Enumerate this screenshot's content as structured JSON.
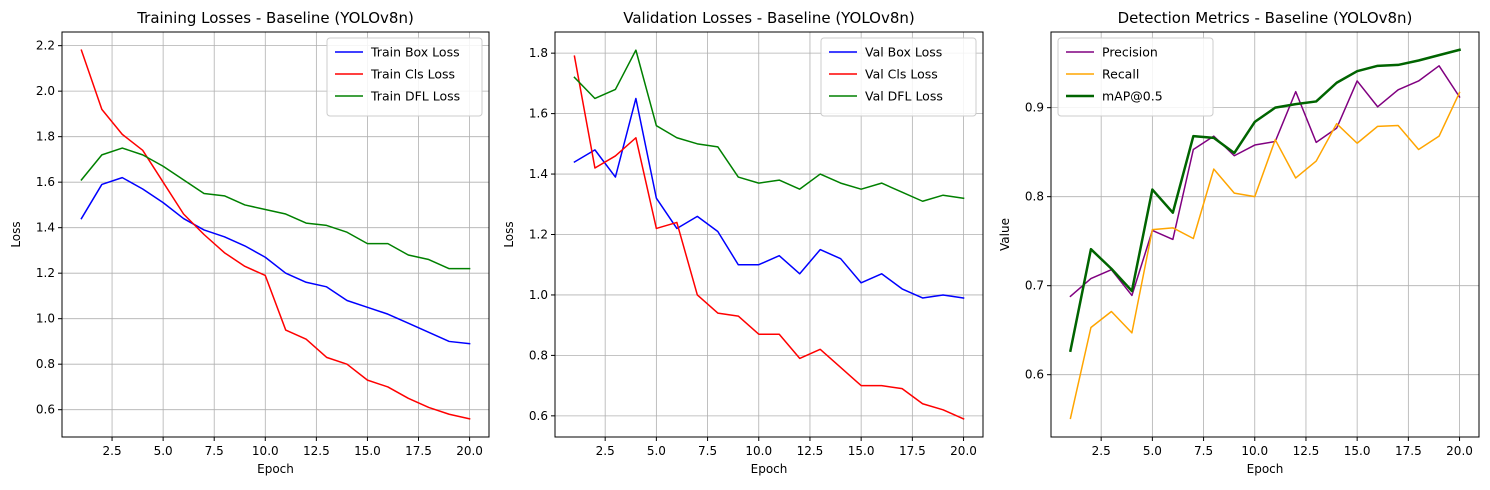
{
  "chart_data": [
    {
      "type": "line",
      "title": "Training Losses - Baseline (YOLOv8n)",
      "xlabel": "Epoch",
      "ylabel": "Loss",
      "xlim": [
        0.05,
        20.95
      ],
      "ylim": [
        0.48,
        2.26
      ],
      "xticks": [
        2.5,
        5.0,
        7.5,
        10.0,
        12.5,
        15.0,
        17.5,
        20.0
      ],
      "xticklabels": [
        "2.5",
        "5.0",
        "7.5",
        "10.0",
        "12.5",
        "15.0",
        "17.5",
        "20.0"
      ],
      "yticks": [
        0.6,
        0.8,
        1.0,
        1.2,
        1.4,
        1.6,
        1.8,
        2.0,
        2.2
      ],
      "yticklabels": [
        "0.6",
        "0.8",
        "1.0",
        "1.2",
        "1.4",
        "1.6",
        "1.8",
        "2.0",
        "2.2"
      ],
      "grid": true,
      "legend": "upper right",
      "x": [
        1,
        2,
        3,
        4,
        5,
        6,
        7,
        8,
        9,
        10,
        11,
        12,
        13,
        14,
        15,
        16,
        17,
        18,
        19,
        20
      ],
      "series": [
        {
          "name": "Train Box Loss",
          "color": "#0000ff",
          "linewidth": 1.5,
          "values": [
            1.44,
            1.59,
            1.62,
            1.57,
            1.51,
            1.44,
            1.39,
            1.36,
            1.32,
            1.27,
            1.2,
            1.16,
            1.14,
            1.08,
            1.05,
            1.02,
            0.98,
            0.94,
            0.9,
            0.89
          ]
        },
        {
          "name": "Train Cls Loss",
          "color": "#ff0000",
          "linewidth": 1.5,
          "values": [
            2.18,
            1.92,
            1.81,
            1.74,
            1.6,
            1.46,
            1.37,
            1.29,
            1.23,
            1.19,
            0.95,
            0.91,
            0.83,
            0.8,
            0.73,
            0.7,
            0.65,
            0.61,
            0.58,
            0.56
          ]
        },
        {
          "name": "Train DFL Loss",
          "color": "#008000",
          "linewidth": 1.5,
          "values": [
            1.61,
            1.72,
            1.75,
            1.72,
            1.67,
            1.61,
            1.55,
            1.54,
            1.5,
            1.48,
            1.46,
            1.42,
            1.41,
            1.38,
            1.33,
            1.33,
            1.28,
            1.26,
            1.22,
            1.22
          ]
        }
      ]
    },
    {
      "type": "line",
      "title": "Validation Losses - Baseline (YOLOv8n)",
      "xlabel": "Epoch",
      "ylabel": "Loss",
      "xlim": [
        0.05,
        20.95
      ],
      "ylim": [
        0.53,
        1.87
      ],
      "xticks": [
        2.5,
        5.0,
        7.5,
        10.0,
        12.5,
        15.0,
        17.5,
        20.0
      ],
      "xticklabels": [
        "2.5",
        "5.0",
        "7.5",
        "10.0",
        "12.5",
        "15.0",
        "17.5",
        "20.0"
      ],
      "yticks": [
        0.6,
        0.8,
        1.0,
        1.2,
        1.4,
        1.6,
        1.8
      ],
      "yticklabels": [
        "0.6",
        "0.8",
        "1.0",
        "1.2",
        "1.4",
        "1.6",
        "1.8"
      ],
      "grid": true,
      "legend": "upper right",
      "x": [
        1,
        2,
        3,
        4,
        5,
        6,
        7,
        8,
        9,
        10,
        11,
        12,
        13,
        14,
        15,
        16,
        17,
        18,
        19,
        20
      ],
      "series": [
        {
          "name": "Val Box Loss",
          "color": "#0000ff",
          "linewidth": 1.5,
          "values": [
            1.44,
            1.48,
            1.39,
            1.65,
            1.32,
            1.22,
            1.26,
            1.21,
            1.1,
            1.1,
            1.13,
            1.07,
            1.15,
            1.12,
            1.04,
            1.07,
            1.02,
            0.99,
            1.0,
            0.99
          ]
        },
        {
          "name": "Val Cls Loss",
          "color": "#ff0000",
          "linewidth": 1.5,
          "values": [
            1.79,
            1.42,
            1.46,
            1.52,
            1.22,
            1.24,
            1.0,
            0.94,
            0.93,
            0.87,
            0.87,
            0.79,
            0.82,
            0.76,
            0.7,
            0.7,
            0.69,
            0.64,
            0.62,
            0.59
          ]
        },
        {
          "name": "Val DFL Loss",
          "color": "#008000",
          "linewidth": 1.5,
          "values": [
            1.72,
            1.65,
            1.68,
            1.81,
            1.56,
            1.52,
            1.5,
            1.49,
            1.39,
            1.37,
            1.38,
            1.35,
            1.4,
            1.37,
            1.35,
            1.37,
            1.34,
            1.31,
            1.33,
            1.32
          ]
        }
      ]
    },
    {
      "type": "line",
      "title": "Detection Metrics - Baseline (YOLOv8n)",
      "xlabel": "Epoch",
      "ylabel": "Value",
      "xlim": [
        0.05,
        20.95
      ],
      "ylim": [
        0.53,
        0.985
      ],
      "xticks": [
        2.5,
        5.0,
        7.5,
        10.0,
        12.5,
        15.0,
        17.5,
        20.0
      ],
      "xticklabels": [
        "2.5",
        "5.0",
        "7.5",
        "10.0",
        "12.5",
        "15.0",
        "17.5",
        "20.0"
      ],
      "yticks": [
        0.6,
        0.7,
        0.8,
        0.9
      ],
      "yticklabels": [
        "0.6",
        "0.7",
        "0.8",
        "0.9"
      ],
      "grid": true,
      "legend": "upper left",
      "x": [
        1,
        2,
        3,
        4,
        5,
        6,
        7,
        8,
        9,
        10,
        11,
        12,
        13,
        14,
        15,
        16,
        17,
        18,
        19,
        20
      ],
      "series": [
        {
          "name": "Precision",
          "color": "#800080",
          "linewidth": 1.5,
          "values": [
            0.688,
            0.708,
            0.718,
            0.689,
            0.762,
            0.752,
            0.853,
            0.868,
            0.846,
            0.858,
            0.862,
            0.918,
            0.861,
            0.877,
            0.93,
            0.901,
            0.92,
            0.93,
            0.947,
            0.912
          ]
        },
        {
          "name": "Recall",
          "color": "#ffa500",
          "linewidth": 1.5,
          "values": [
            0.551,
            0.653,
            0.671,
            0.647,
            0.763,
            0.765,
            0.753,
            0.831,
            0.804,
            0.8,
            0.864,
            0.821,
            0.84,
            0.882,
            0.86,
            0.879,
            0.88,
            0.853,
            0.868,
            0.917
          ]
        },
        {
          "name": "mAP@0.5",
          "color": "#006400",
          "linewidth": 2.5,
          "values": [
            0.627,
            0.741,
            0.719,
            0.694,
            0.808,
            0.782,
            0.868,
            0.866,
            0.849,
            0.884,
            0.9,
            0.904,
            0.907,
            0.928,
            0.941,
            0.947,
            0.948,
            0.953,
            0.959,
            0.965
          ]
        }
      ]
    }
  ]
}
